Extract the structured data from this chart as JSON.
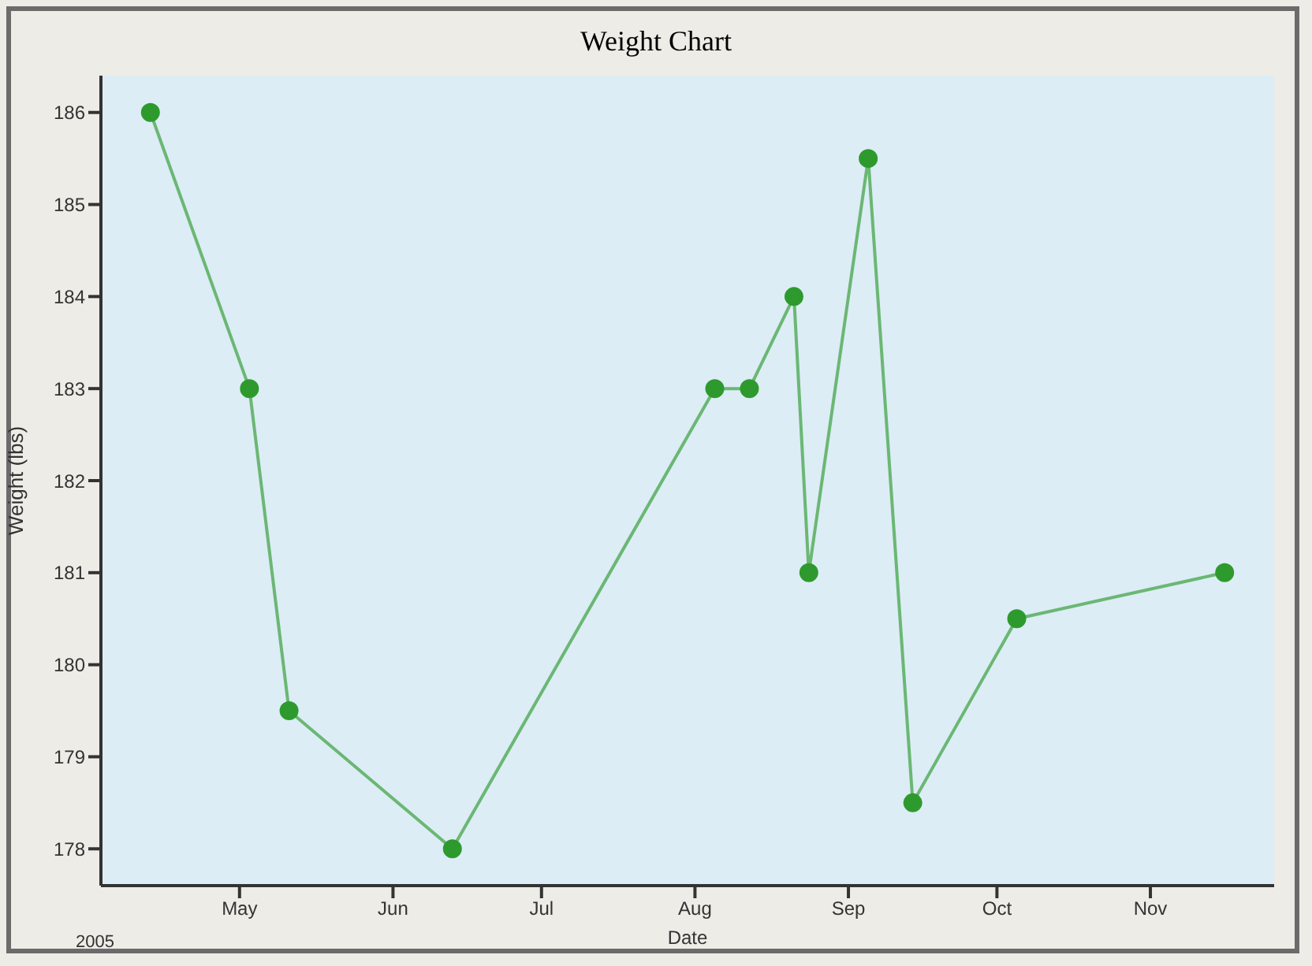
{
  "chart_data": {
    "type": "line",
    "title": "Weight Chart",
    "xlabel": "Date",
    "ylabel": "Weight (lbs)",
    "annotations": [
      "2005"
    ],
    "x": [
      "2005-04-13",
      "2005-05-03",
      "2005-05-11",
      "2005-06-13",
      "2005-08-05",
      "2005-08-12",
      "2005-08-21",
      "2005-08-24",
      "2005-09-05",
      "2005-09-14",
      "2005-10-05",
      "2005-11-16"
    ],
    "series": [
      {
        "color": "#2e9a2e",
        "values": [
          186,
          183,
          179.5,
          178,
          183,
          183,
          184,
          181,
          185.5,
          178.5,
          180.5,
          181
        ]
      }
    ],
    "xlim": [
      "2005-04-03",
      "2005-11-26"
    ],
    "xticks": [
      {
        "value": "2005-05-01",
        "label": "May"
      },
      {
        "value": "2005-06-01",
        "label": "Jun"
      },
      {
        "value": "2005-07-01",
        "label": "Jul"
      },
      {
        "value": "2005-08-01",
        "label": "Aug"
      },
      {
        "value": "2005-09-01",
        "label": "Sep"
      },
      {
        "value": "2005-10-01",
        "label": "Oct"
      },
      {
        "value": "2005-11-01",
        "label": "Nov"
      }
    ],
    "ylim": [
      177.6,
      186.4
    ],
    "yticks": [
      178,
      179,
      180,
      181,
      182,
      183,
      184,
      185,
      186
    ],
    "grid": false,
    "legend": false,
    "marker": "circle",
    "line_style": "solid"
  }
}
